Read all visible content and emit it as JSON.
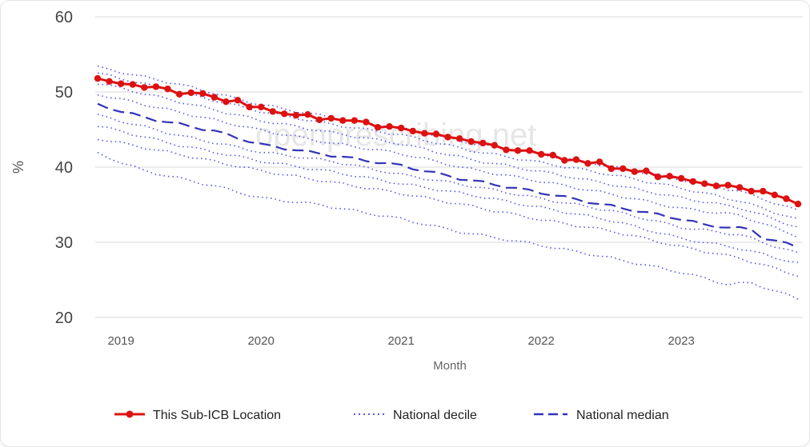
{
  "watermark": "openprescribing.net",
  "chart_data": {
    "type": "line",
    "title": "",
    "xlabel": "Month",
    "ylabel": "%",
    "ylim": [
      20,
      60
    ],
    "yticks": [
      "20",
      "30",
      "40",
      "50",
      "60"
    ],
    "xticks": [
      "2019",
      "2020",
      "2021",
      "2022",
      "2023"
    ],
    "xrange": [
      "2018-11",
      "2023-11"
    ],
    "grid": "horizontal",
    "legend_position": "bottom",
    "colors": {
      "location": "#dd1111",
      "decile": "#5555ee",
      "median": "#3333bb",
      "grid": "#e6e6e6"
    },
    "legend": [
      {
        "label": "This Sub-ICB Location",
        "style": "solid-with-markers"
      },
      {
        "label": "National decile",
        "style": "dotted"
      },
      {
        "label": "National median",
        "style": "dashed"
      }
    ],
    "series": [
      {
        "name": "This Sub-ICB Location",
        "style": "location",
        "x": [
          "2018-11",
          "2018-12",
          "2019-01",
          "2019-02",
          "2019-03",
          "2019-04",
          "2019-05",
          "2019-06",
          "2019-07",
          "2019-08",
          "2019-09",
          "2019-10",
          "2019-11",
          "2019-12",
          "2020-01",
          "2020-02",
          "2020-03",
          "2020-04",
          "2020-05",
          "2020-06",
          "2020-07",
          "2020-08",
          "2020-09",
          "2020-10",
          "2020-11",
          "2020-12",
          "2021-01",
          "2021-02",
          "2021-03",
          "2021-04",
          "2021-05",
          "2021-06",
          "2021-07",
          "2021-08",
          "2021-09",
          "2021-10",
          "2021-11",
          "2021-12",
          "2022-01",
          "2022-02",
          "2022-03",
          "2022-04",
          "2022-05",
          "2022-06",
          "2022-07",
          "2022-08",
          "2022-09",
          "2022-10",
          "2022-11",
          "2022-12",
          "2023-01",
          "2023-02",
          "2023-03",
          "2023-04",
          "2023-05",
          "2023-06",
          "2023-07",
          "2023-08",
          "2023-09",
          "2023-10",
          "2023-11"
        ],
        "values": [
          51.8,
          51.4,
          51.1,
          51.0,
          50.6,
          50.7,
          50.4,
          49.7,
          49.9,
          49.8,
          49.3,
          48.7,
          48.9,
          48.0,
          48.0,
          47.4,
          47.1,
          46.9,
          47.0,
          46.3,
          46.5,
          46.2,
          46.2,
          46.0,
          45.3,
          45.4,
          45.2,
          44.8,
          44.5,
          44.4,
          44.0,
          43.8,
          43.4,
          43.2,
          42.9,
          42.3,
          42.2,
          42.2,
          41.7,
          41.6,
          40.9,
          41.0,
          40.5,
          40.7,
          39.8,
          39.8,
          39.4,
          39.5,
          38.7,
          38.8,
          38.5,
          38.1,
          37.8,
          37.5,
          37.6,
          37.3,
          36.8,
          36.8,
          36.3,
          35.8,
          35.1
        ]
      },
      {
        "name": "National median",
        "style": "median",
        "anchors": [
          [
            "2018-11",
            48.3
          ],
          [
            "2019-03",
            46.6
          ],
          [
            "2019-09",
            44.8
          ],
          [
            "2020-01",
            43.0
          ],
          [
            "2020-06",
            41.8
          ],
          [
            "2021-01",
            40.2
          ],
          [
            "2021-06",
            38.5
          ],
          [
            "2022-01",
            36.6
          ],
          [
            "2022-06",
            35.1
          ],
          [
            "2023-01",
            33.1
          ],
          [
            "2023-03",
            32.3
          ],
          [
            "2023-07",
            31.7
          ],
          [
            "2023-08",
            30.6
          ],
          [
            "2023-11",
            29.4
          ]
        ]
      },
      {
        "name": "",
        "style": "decile",
        "anchors": [
          [
            "2018-11",
            53.3
          ],
          [
            "2019-06",
            51.0
          ],
          [
            "2020-01",
            48.3
          ],
          [
            "2020-07",
            46.6
          ],
          [
            "2021-01",
            45.2
          ],
          [
            "2021-07",
            43.2
          ],
          [
            "2022-01",
            41.7
          ],
          [
            "2022-07",
            40.1
          ],
          [
            "2023-01",
            38.3
          ],
          [
            "2023-06",
            36.8
          ],
          [
            "2023-11",
            34.2
          ]
        ]
      },
      {
        "name": "",
        "style": "decile",
        "anchors": [
          [
            "2018-11",
            52.5
          ],
          [
            "2019-06",
            50.0
          ],
          [
            "2020-01",
            47.4
          ],
          [
            "2020-07",
            45.7
          ],
          [
            "2021-01",
            44.3
          ],
          [
            "2021-07",
            42.2
          ],
          [
            "2022-01",
            40.6
          ],
          [
            "2022-07",
            39.0
          ],
          [
            "2023-01",
            37.2
          ],
          [
            "2023-06",
            35.5
          ],
          [
            "2023-11",
            33.0
          ]
        ]
      },
      {
        "name": "",
        "style": "decile",
        "anchors": [
          [
            "2018-11",
            51.2
          ],
          [
            "2019-06",
            48.7
          ],
          [
            "2020-01",
            46.2
          ],
          [
            "2020-07",
            44.6
          ],
          [
            "2021-01",
            43.1
          ],
          [
            "2021-07",
            41.0
          ],
          [
            "2022-01",
            39.4
          ],
          [
            "2022-07",
            37.7
          ],
          [
            "2023-01",
            35.9
          ],
          [
            "2023-06",
            34.6
          ],
          [
            "2023-11",
            32.0
          ]
        ]
      },
      {
        "name": "",
        "style": "decile",
        "anchors": [
          [
            "2018-11",
            49.7
          ],
          [
            "2019-06",
            47.3
          ],
          [
            "2020-01",
            44.9
          ],
          [
            "2020-07",
            43.2
          ],
          [
            "2021-01",
            41.8
          ],
          [
            "2021-07",
            39.7
          ],
          [
            "2022-01",
            38.1
          ],
          [
            "2022-07",
            36.4
          ],
          [
            "2023-01",
            34.5
          ],
          [
            "2023-06",
            33.6
          ],
          [
            "2023-11",
            30.8
          ]
        ]
      },
      {
        "name": "",
        "style": "decile",
        "anchors": [
          [
            "2018-11",
            46.9
          ],
          [
            "2019-06",
            44.2
          ],
          [
            "2020-01",
            42.0
          ],
          [
            "2020-07",
            40.8
          ],
          [
            "2021-01",
            39.0
          ],
          [
            "2021-07",
            37.5
          ],
          [
            "2022-01",
            35.8
          ],
          [
            "2022-07",
            34.2
          ],
          [
            "2023-01",
            32.0
          ],
          [
            "2023-06",
            31.0
          ],
          [
            "2023-11",
            28.5
          ]
        ]
      },
      {
        "name": "",
        "style": "decile",
        "anchors": [
          [
            "2018-11",
            45.5
          ],
          [
            "2019-06",
            42.9
          ],
          [
            "2020-01",
            40.8
          ],
          [
            "2020-07",
            39.4
          ],
          [
            "2021-01",
            37.8
          ],
          [
            "2021-07",
            36.3
          ],
          [
            "2022-01",
            34.6
          ],
          [
            "2022-07",
            32.9
          ],
          [
            "2023-01",
            30.5
          ],
          [
            "2023-06",
            29.2
          ],
          [
            "2023-11",
            27.2
          ]
        ]
      },
      {
        "name": "",
        "style": "decile",
        "anchors": [
          [
            "2018-11",
            43.8
          ],
          [
            "2019-06",
            41.7
          ],
          [
            "2020-01",
            39.5
          ],
          [
            "2020-07",
            38.0
          ],
          [
            "2021-01",
            36.5
          ],
          [
            "2021-07",
            34.8
          ],
          [
            "2022-01",
            33.0
          ],
          [
            "2022-07",
            31.5
          ],
          [
            "2023-01",
            29.4
          ],
          [
            "2023-06",
            27.9
          ],
          [
            "2023-11",
            25.6
          ]
        ]
      },
      {
        "name": "",
        "style": "decile",
        "anchors": [
          [
            "2018-11",
            41.8
          ],
          [
            "2019-03",
            39.5
          ],
          [
            "2019-09",
            37.5
          ],
          [
            "2020-01",
            35.9
          ],
          [
            "2020-06",
            35.0
          ],
          [
            "2021-01",
            33.1
          ],
          [
            "2021-06",
            31.4
          ],
          [
            "2022-01",
            29.6
          ],
          [
            "2022-06",
            28.2
          ],
          [
            "2023-01",
            26.0
          ],
          [
            "2023-05",
            24.4
          ],
          [
            "2023-07",
            24.6
          ],
          [
            "2023-11",
            22.5
          ]
        ]
      }
    ]
  }
}
